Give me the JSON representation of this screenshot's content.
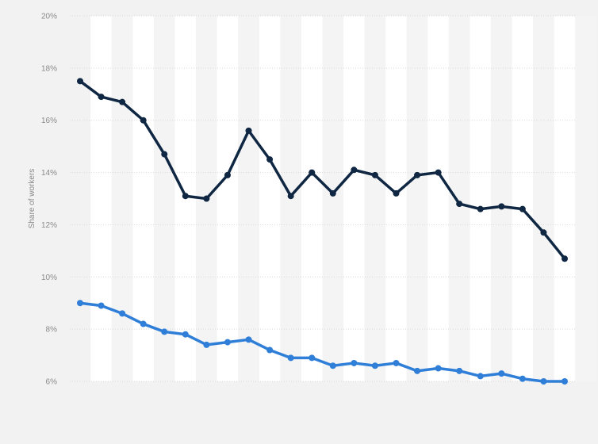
{
  "colors": {
    "background": "#f2f2f2",
    "band_light": "#ffffff",
    "band_dark": "#f4f4f4",
    "grid": "#d9d9d9",
    "series_dark": "#0f2742",
    "series_blue": "#2f7ed8"
  },
  "chart_data": {
    "type": "line",
    "title": "",
    "xlabel": "",
    "ylabel": "Share of workers",
    "ylim": [
      6,
      20
    ],
    "y_ticks": [
      "6%",
      "8%",
      "10%",
      "12%",
      "14%",
      "16%",
      "18%",
      "20%"
    ],
    "y_tick_values": [
      6,
      8,
      10,
      12,
      14,
      16,
      18,
      20
    ],
    "grid": true,
    "legend": "none",
    "x_count": 24,
    "series": [
      {
        "color": "#0f2742",
        "values": [
          17.5,
          16.9,
          16.7,
          16.0,
          14.7,
          13.1,
          13.0,
          13.9,
          15.6,
          14.5,
          13.1,
          14.0,
          13.2,
          14.1,
          13.9,
          13.2,
          13.9,
          14.0,
          12.8,
          12.6,
          12.7,
          12.6,
          11.7,
          10.7
        ]
      },
      {
        "color": "#2f7ed8",
        "values": [
          9.0,
          8.9,
          8.6,
          8.2,
          7.9,
          7.8,
          7.4,
          7.5,
          7.6,
          7.2,
          6.9,
          6.9,
          6.6,
          6.7,
          6.6,
          6.7,
          6.4,
          6.5,
          6.4,
          6.2,
          6.3,
          6.1,
          6.0,
          6.0
        ]
      }
    ]
  }
}
